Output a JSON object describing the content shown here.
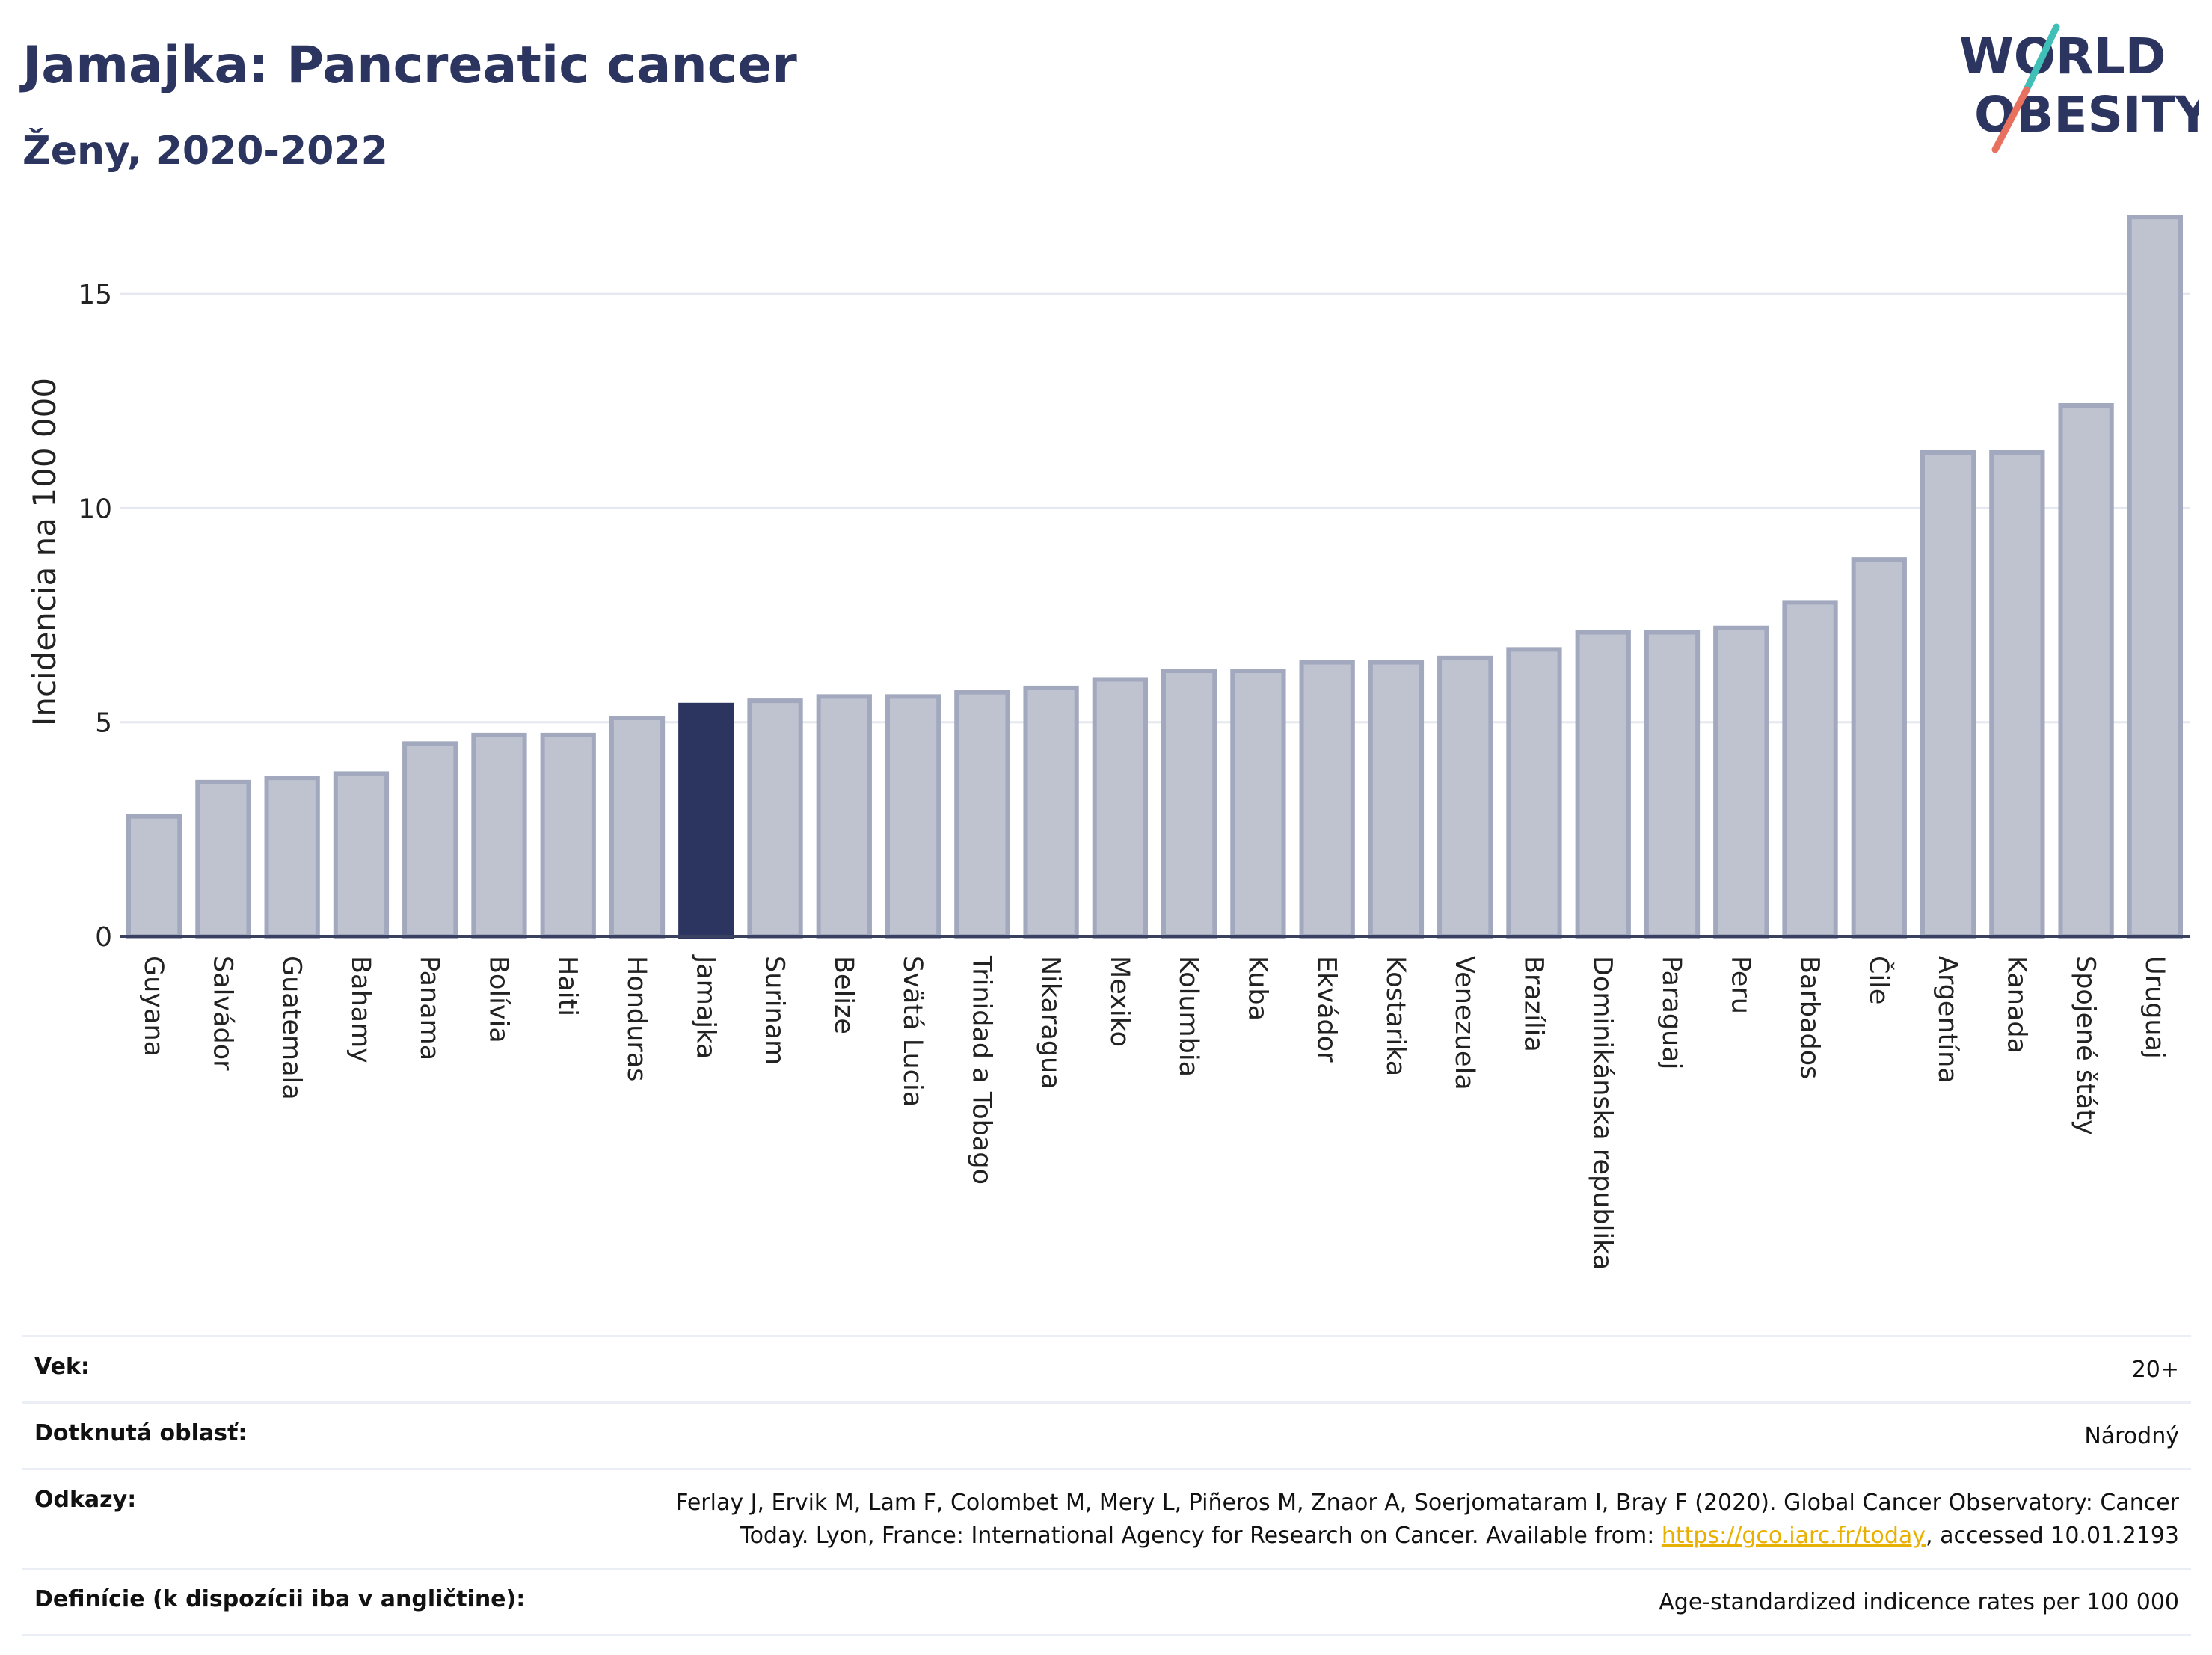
{
  "header": {
    "title": "Jamajka: Pancreatic cancer",
    "subtitle": "Ženy, 2020-2022"
  },
  "logo": {
    "line1": "WORLD",
    "line2": "OBESITY"
  },
  "colors": {
    "bar": "#bfc3d0",
    "bar_border": "#a2a8bd",
    "highlight": "#2b3560",
    "title": "#2b3560",
    "grid": "#e6e8ef",
    "link": "#e8b000"
  },
  "chart_data": {
    "type": "bar",
    "ylabel": "Incidencia na 100 000",
    "ylim": [
      0,
      17.5
    ],
    "yticks": [
      0,
      5,
      10,
      15
    ],
    "grid": true,
    "highlight": "Jamajka",
    "categories": [
      "Guyana",
      "Salvádor",
      "Guatemala",
      "Bahamy",
      "Panama",
      "Bolívia",
      "Haiti",
      "Honduras",
      "Jamajka",
      "Surinam",
      "Belize",
      "Svätá Lucia",
      "Trinidad a Tobago",
      "Nikaragua",
      "Mexiko",
      "Kolumbia",
      "Kuba",
      "Ekvádor",
      "Kostarika",
      "Venezuela",
      "Brazília",
      "Dominikánska republika",
      "Paraguaj",
      "Peru",
      "Barbados",
      "Čile",
      "Argentína",
      "Kanada",
      "Spojené štáty",
      "Uruguaj"
    ],
    "values": [
      2.8,
      3.6,
      3.7,
      3.8,
      4.5,
      4.7,
      4.7,
      5.1,
      5.4,
      5.5,
      5.6,
      5.6,
      5.7,
      5.8,
      6.0,
      6.2,
      6.2,
      6.4,
      6.4,
      6.5,
      6.7,
      7.1,
      7.1,
      7.2,
      7.8,
      8.8,
      11.3,
      11.3,
      12.4,
      16.8
    ]
  },
  "info": {
    "age_label": "Vek:",
    "age_value": "20+",
    "area_label": "Dotknutá oblasť:",
    "area_value": "Národný",
    "refs_label": "Odkazy:",
    "refs_text_1": "Ferlay J, Ervik M, Lam F, Colombet M, Mery L, Piñeros M, Znaor A, Soerjomataram I, Bray F (2020). Global Cancer Observatory: Cancer Today. Lyon, France: International Agency for Research on Cancer. Available from: ",
    "refs_link": "https://gco.iarc.fr/today",
    "refs_text_2": ", accessed 10.01.2193",
    "def_label": "Definície (k dispozícii iba v angličtine):",
    "def_value": "Age-standardized indicence rates per 100 000"
  }
}
